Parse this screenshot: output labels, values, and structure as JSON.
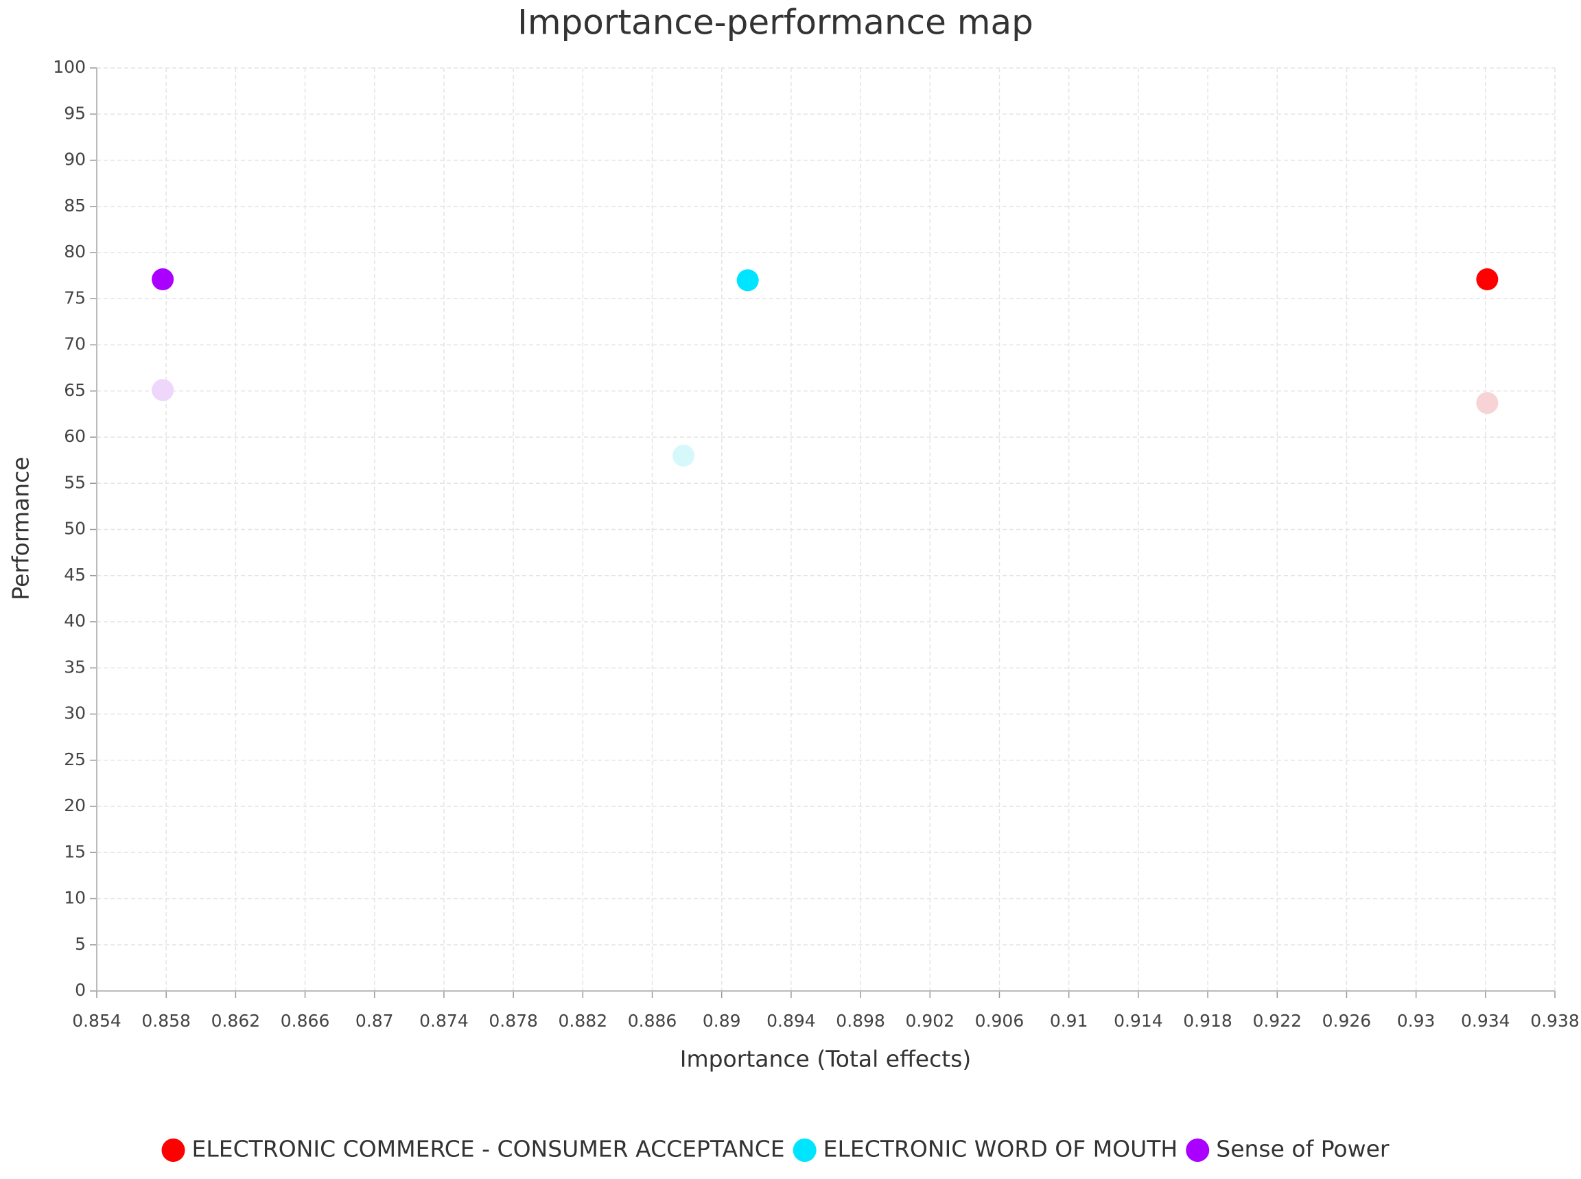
{
  "chart_data": {
    "type": "scatter",
    "title": "Importance-performance map",
    "xlabel": "Importance (Total effects)",
    "ylabel": "Performance",
    "xlim": [
      0.854,
      0.938
    ],
    "xticks": [
      0.854,
      0.858,
      0.862,
      0.866,
      0.87,
      0.874,
      0.878,
      0.882,
      0.886,
      0.89,
      0.894,
      0.898,
      0.902,
      0.906,
      0.91,
      0.914,
      0.918,
      0.922,
      0.926,
      0.93,
      0.934,
      0.938
    ],
    "ylim": [
      0,
      100
    ],
    "yticks": [
      0,
      5,
      10,
      15,
      20,
      25,
      30,
      35,
      40,
      45,
      50,
      55,
      60,
      65,
      70,
      75,
      80,
      85,
      90,
      95,
      100
    ],
    "grid": true,
    "legend": "bottom",
    "series": [
      {
        "name": "ELECTRONIC COMMERCE - CONSUMER ACCEPTANCE",
        "color": "#ff0000",
        "x": [
          0.9341,
          0.9341
        ],
        "y": [
          77.1,
          63.7
        ],
        "point_colors": [
          "#ff0000",
          "#f8d3d6"
        ]
      },
      {
        "name": "ELECTRONIC WORD OF MOUTH",
        "color": "#00e5ff",
        "x": [
          0.8915,
          0.8878
        ],
        "y": [
          77.0,
          58.0
        ],
        "point_colors": [
          "#00e5ff",
          "#d6f8fb"
        ]
      },
      {
        "name": "Sense of Power",
        "color": "#aa00ff",
        "x": [
          0.8578,
          0.8578
        ],
        "y": [
          77.1,
          65.1
        ],
        "point_colors": [
          "#aa00ff",
          "#efd6fb"
        ]
      }
    ]
  }
}
